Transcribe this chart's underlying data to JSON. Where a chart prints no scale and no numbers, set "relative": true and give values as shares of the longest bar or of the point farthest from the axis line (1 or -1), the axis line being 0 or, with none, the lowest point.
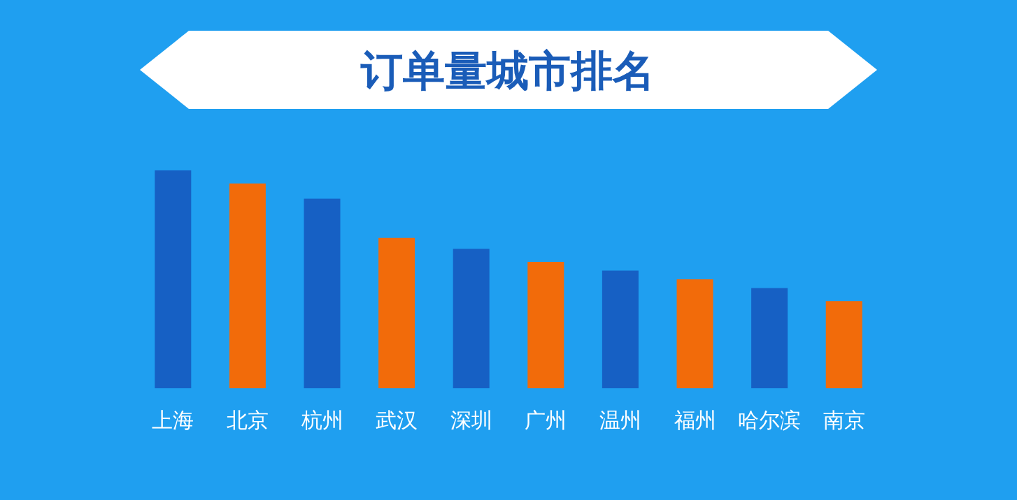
{
  "chart_data": {
    "type": "bar",
    "title": "订单量城市排名",
    "relative": true,
    "categories": [
      "上海",
      "北京",
      "杭州",
      "武汉",
      "深圳",
      "广州",
      "温州",
      "福州",
      "哈尔滨",
      "南京"
    ],
    "values": [
      1,
      0.94,
      0.87,
      0.69,
      0.64,
      0.58,
      0.54,
      0.5,
      0.46,
      0.4
    ],
    "colors": [
      "#1660c4",
      "#f26b0a",
      "#1660c4",
      "#f26b0a",
      "#1660c4",
      "#f26b0a",
      "#1660c4",
      "#f26b0a",
      "#1660c4",
      "#f26b0a"
    ]
  }
}
